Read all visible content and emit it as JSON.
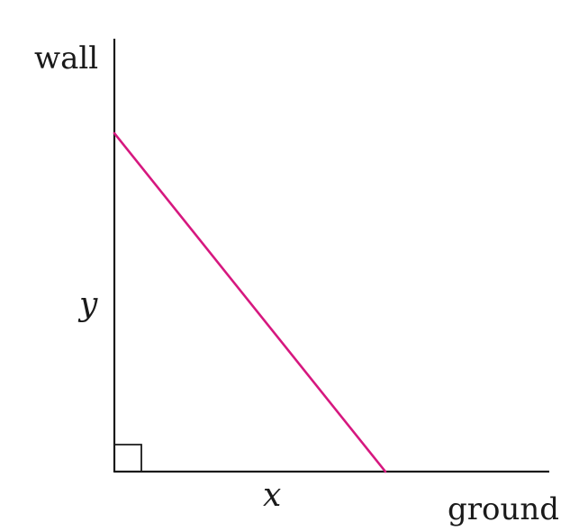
{
  "labels": {
    "wall": "wall",
    "ground": "ground",
    "height_var": "y",
    "base_var": "x"
  },
  "colors": {
    "ladder": "#d6187f",
    "axes": "#1a1a1a",
    "background": "#ffffff"
  },
  "features": {
    "right_angle_marker": true
  }
}
